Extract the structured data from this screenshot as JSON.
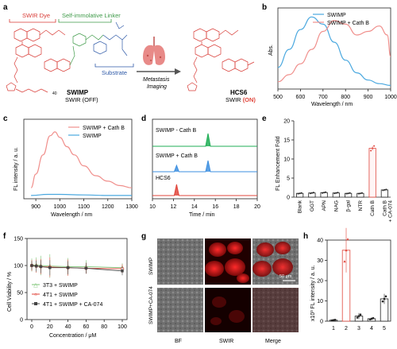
{
  "colors": {
    "blue": "#4aa8df",
    "pink": "#f08f8c",
    "green": "#7cc576",
    "red": "#e0453b",
    "dark": "#444444",
    "swir_dye_red": "#d83a35",
    "linker_green": "#3e9a48",
    "substrate_blue": "#2f5aa8"
  },
  "panel_labels": [
    "a",
    "b",
    "c",
    "d",
    "e",
    "f",
    "g",
    "h"
  ],
  "panel_a": {
    "swir_dye_label": "SWIR Dye",
    "linker_label": "Self-immolative Linker",
    "substrate_label": "Substrate",
    "swimp_name": "SWIMP",
    "swimp_state": "SWIR (OFF)",
    "arrow_label": "Metastasis\nImaging",
    "hcs6_name": "HCS6",
    "hcs6_state_prefix": "SWIR",
    "hcs6_state_on": "(ON)",
    "n40": "40"
  },
  "chart_data": [
    {
      "panel": "b",
      "type": "line",
      "xlabel": "Wavelength / nm",
      "ylabel": "Abs.",
      "xlim": [
        500,
        1000
      ],
      "xticks": [
        500,
        600,
        700,
        800,
        900,
        1000
      ],
      "series": [
        {
          "name": "SWIMP",
          "color": "#4aa8df",
          "x": [
            500,
            550,
            600,
            650,
            700,
            750,
            800,
            850,
            900,
            950,
            1000
          ],
          "y": [
            0.12,
            0.22,
            0.33,
            0.4,
            0.36,
            0.26,
            0.16,
            0.09,
            0.05,
            0.03,
            0.02
          ]
        },
        {
          "name": "SWIMP + Cath B",
          "color": "#f08f8c",
          "x": [
            500,
            550,
            600,
            650,
            700,
            750,
            800,
            850,
            900,
            950,
            985,
            1000
          ],
          "y": [
            0.04,
            0.08,
            0.14,
            0.22,
            0.32,
            0.38,
            0.36,
            0.3,
            0.32,
            0.35,
            0.3,
            0.18
          ]
        }
      ]
    },
    {
      "panel": "c",
      "type": "line",
      "xlabel": "Wavelength / nm",
      "ylabel": "FL intensity / a. u.",
      "xlim": [
        850,
        1300
      ],
      "xticks": [
        900,
        1000,
        1100,
        1200,
        1300
      ],
      "series": [
        {
          "name": "SWIMP + Cath B",
          "color": "#f08f8c",
          "x": [
            880,
            900,
            930,
            960,
            980,
            1000,
            1030,
            1060,
            1100,
            1150,
            1200,
            1250,
            1300
          ],
          "y": [
            0.2,
            0.45,
            0.8,
            1.15,
            1.22,
            1.12,
            0.95,
            0.8,
            0.6,
            0.42,
            0.32,
            0.24,
            0.2
          ]
        },
        {
          "name": "SWIMP",
          "color": "#4aa8df",
          "x": [
            880,
            950,
            1000,
            1100,
            1200,
            1300
          ],
          "y": [
            0.06,
            0.08,
            0.08,
            0.07,
            0.06,
            0.06
          ]
        }
      ]
    },
    {
      "panel": "d",
      "type": "line",
      "xlabel": "Time / min",
      "xlim": [
        10,
        20
      ],
      "xticks": [
        10,
        12,
        14,
        16,
        18,
        20
      ],
      "series": [
        {
          "name": "SWIMP - Cath B",
          "color": "#1fae55",
          "peaks": [
            15.3
          ]
        },
        {
          "name": "SWIMP + Cath B",
          "color": "#3d8fe0",
          "peaks": [
            12.3,
            15.3
          ]
        },
        {
          "name": "HCS6",
          "color": "#e0453b",
          "peaks": [
            12.3
          ]
        }
      ]
    },
    {
      "panel": "e",
      "type": "bar",
      "ylabel": "FL Enhancement Fold",
      "ylim": [
        0,
        20
      ],
      "yticks": [
        0,
        5,
        10,
        15,
        20
      ],
      "categories": [
        "Blank",
        "GGT",
        "APN",
        "NAG",
        "β-gal",
        "NTR",
        "Cath B",
        "Cath B + CA-074"
      ],
      "values": [
        1.0,
        1.1,
        1.2,
        1.1,
        1.0,
        1.0,
        12.8,
        1.9
      ]
    },
    {
      "panel": "f",
      "type": "line",
      "xlabel": "Concentration / μM",
      "ylabel": "Cell Viability / %",
      "xlim": [
        0,
        100
      ],
      "ylim": [
        0,
        150
      ],
      "xticks": [
        0,
        20,
        40,
        60,
        80,
        100
      ],
      "yticks": [
        0,
        50,
        100,
        150
      ],
      "legend": "bottom-left",
      "series": [
        {
          "name": "3T3 + SWIMP",
          "color": "#7cc576",
          "x": [
            0,
            5,
            10,
            20,
            40,
            60,
            100
          ],
          "y": [
            101,
            101,
            100,
            99,
            98,
            98,
            96
          ]
        },
        {
          "name": "4T1 + SWIMP",
          "color": "#e0453b",
          "x": [
            0,
            5,
            10,
            20,
            40,
            60,
            100
          ],
          "y": [
            100,
            99,
            98,
            97,
            96,
            95,
            94
          ]
        },
        {
          "name": "4T1 + SWIMP + CA-074",
          "color": "#444444",
          "x": [
            0,
            5,
            10,
            20,
            40,
            60,
            100
          ],
          "y": [
            100,
            99,
            98,
            96,
            96,
            95,
            90
          ]
        }
      ]
    },
    {
      "panel": "h",
      "type": "bar",
      "ylabel": "x10³ FL intensity / a. u.",
      "ylim": [
        0,
        40
      ],
      "yticks": [
        0,
        10,
        20,
        30,
        40
      ],
      "categories": [
        "1",
        "2",
        "3",
        "4",
        "5"
      ],
      "values": [
        0.5,
        35,
        2.5,
        1.2,
        11
      ]
    }
  ],
  "panel_g": {
    "row_labels": [
      "SWIMP",
      "SWIMP+CA-074"
    ],
    "col_labels": [
      "BF",
      "SWIR",
      "Merge"
    ],
    "scale_bar": "50 μm"
  }
}
